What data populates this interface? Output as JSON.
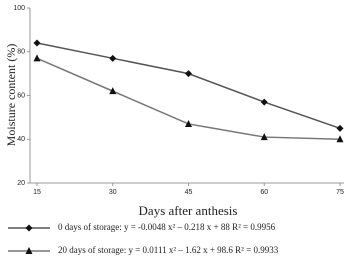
{
  "chart_data": {
    "type": "line",
    "y_label": "Moisture content (%)",
    "x_label": "Days after anthesis",
    "x": [
      15,
      30,
      45,
      60,
      75
    ],
    "series": [
      {
        "name": "0 days of storage: y = -0.0048 x² – 0.218 x + 88 R² = 0.9956",
        "color": "#555555",
        "marker": "diamond",
        "values": [
          84,
          77,
          70,
          57,
          45
        ]
      },
      {
        "name": "20 days of storage: y = 0.0111 x² – 1.62 x + 98.6 R² = 0.9933",
        "color": "#777777",
        "marker": "triangle",
        "values": [
          77,
          62,
          47,
          41,
          40
        ]
      }
    ],
    "xlim": [
      15,
      75
    ],
    "xticks": [
      15,
      30,
      45,
      60,
      75
    ],
    "ylim": [
      20,
      100
    ],
    "yticks": [
      20,
      40,
      60,
      80,
      100
    ],
    "grid": false
  }
}
